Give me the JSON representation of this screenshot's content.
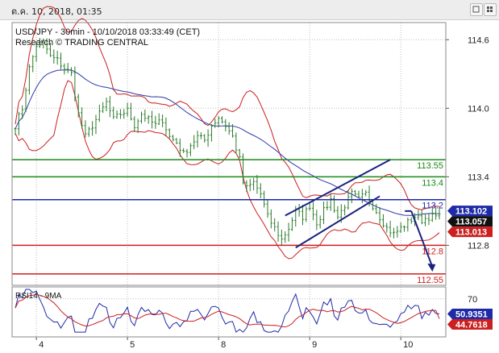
{
  "window": {
    "datetime": "ต.ค. 10, 2018, 01:35"
  },
  "icons": {
    "window_button_1": "maximize-icon",
    "window_button_2": "tile-icon"
  },
  "chart_data": [
    {
      "type": "line",
      "title": "USD/JPY - 30min - 10/10/2018 03:33:49 (CET)",
      "subtitle": "Research © TRADING CENTRAL",
      "ylim": [
        112.45,
        114.75
      ],
      "yticks": [
        "114.6",
        "114.0",
        "113.4",
        "112.8"
      ],
      "xticks": [
        {
          "label": "4",
          "i": 6
        },
        {
          "label": "5",
          "i": 32
        },
        {
          "label": "8",
          "i": 58
        },
        {
          "label": "9",
          "i": 84
        },
        {
          "label": "10",
          "i": 110
        }
      ],
      "x_count": 122,
      "grid": true,
      "colors": {
        "price": "#2a7a2a",
        "ma": "#2f3aa8",
        "band": "#cc1f1f",
        "resistance": "#1a8a1a",
        "pivot": "#1e2aa8",
        "support": "#d21c1c",
        "channel": "#1a237e"
      },
      "levels": [
        {
          "value": 113.55,
          "label": "113.55",
          "role": "resistance"
        },
        {
          "value": 113.4,
          "label": "113.4",
          "role": "resistance"
        },
        {
          "value": 113.2,
          "label": "113.2",
          "role": "pivot"
        },
        {
          "value": 112.8,
          "label": "112.8",
          "role": "support"
        },
        {
          "value": 112.55,
          "label": "112.55",
          "role": "support"
        }
      ],
      "price_tags": [
        {
          "value": 113.102,
          "label": "113.102",
          "color": "#1e2aa8"
        },
        {
          "value": 113.057,
          "label": "113.057",
          "color": "#111111"
        },
        {
          "value": 113.013,
          "label": "113.013",
          "color": "#cc1f1f"
        }
      ],
      "channel_lines": [
        {
          "x1": 80,
          "y1": 112.78,
          "x2": 104,
          "y2": 113.23
        },
        {
          "x1": 77,
          "y1": 113.06,
          "x2": 107,
          "y2": 113.55
        }
      ],
      "projection": {
        "x1": 113,
        "y1": 113.1,
        "x2": 119,
        "y2": 112.57
      },
      "control_points": [
        [
          0,
          113.85
        ],
        [
          2,
          114.0
        ],
        [
          4,
          114.35
        ],
        [
          6,
          114.55
        ],
        [
          8,
          114.58
        ],
        [
          10,
          114.45
        ],
        [
          12,
          114.42
        ],
        [
          14,
          114.35
        ],
        [
          16,
          114.3
        ],
        [
          18,
          113.95
        ],
        [
          20,
          113.75
        ],
        [
          22,
          113.85
        ],
        [
          24,
          113.95
        ],
        [
          26,
          114.05
        ],
        [
          28,
          113.9
        ],
        [
          30,
          113.95
        ],
        [
          32,
          113.98
        ],
        [
          34,
          113.85
        ],
        [
          36,
          113.95
        ],
        [
          38,
          113.9
        ],
        [
          40,
          113.85
        ],
        [
          42,
          113.9
        ],
        [
          44,
          113.75
        ],
        [
          46,
          113.7
        ],
        [
          48,
          113.6
        ],
        [
          50,
          113.68
        ],
        [
          52,
          113.75
        ],
        [
          54,
          113.72
        ],
        [
          56,
          113.85
        ],
        [
          58,
          113.92
        ],
        [
          60,
          113.85
        ],
        [
          62,
          113.75
        ],
        [
          64,
          113.55
        ],
        [
          65,
          113.35
        ],
        [
          66,
          113.3
        ],
        [
          68,
          113.35
        ],
        [
          70,
          113.25
        ],
        [
          72,
          113.05
        ],
        [
          74,
          112.95
        ],
        [
          76,
          112.85
        ],
        [
          78,
          112.95
        ],
        [
          80,
          113.1
        ],
        [
          82,
          113.05
        ],
        [
          84,
          113.15
        ],
        [
          86,
          113.0
        ],
        [
          88,
          113.1
        ],
        [
          90,
          113.2
        ],
        [
          92,
          113.05
        ],
        [
          94,
          113.15
        ],
        [
          96,
          113.25
        ],
        [
          98,
          113.2
        ],
        [
          100,
          113.25
        ],
        [
          102,
          113.15
        ],
        [
          104,
          113.05
        ],
        [
          106,
          112.95
        ],
        [
          108,
          112.9
        ],
        [
          110,
          112.95
        ],
        [
          112,
          113.0
        ],
        [
          114,
          113.05
        ],
        [
          116,
          113.02
        ],
        [
          118,
          113.05
        ]
      ],
      "rsi": {
        "title": "RSI14 - 9MA",
        "ylim": [
          22,
          85
        ],
        "ytick": "70",
        "tags": [
          {
            "value": 50.9351,
            "label": "50.9351",
            "color": "#1e2aa8"
          },
          {
            "value": 44.7618,
            "label": "44.7618",
            "color": "#cc1f1f"
          }
        ],
        "colors": {
          "rsi": "#1e2aa8",
          "ma": "#cc1f1f"
        }
      }
    }
  ]
}
